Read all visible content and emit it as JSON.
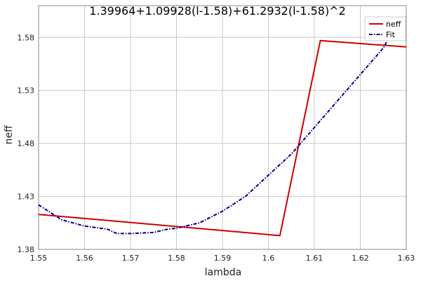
{
  "chart_data": {
    "type": "line",
    "title": "1.39964+1.09928(l-1.58)+61.2932(l-1.58)^2",
    "xlabel": "lambda",
    "ylabel": "neff",
    "xlim": [
      1.55,
      1.63
    ],
    "ylim": [
      1.38,
      1.61
    ],
    "x_ticks": [
      1.55,
      1.56,
      1.57,
      1.58,
      1.59,
      1.6,
      1.61,
      1.62,
      1.63
    ],
    "x_tick_labels": [
      "1.55",
      "1.56",
      "1.57",
      "1.58",
      "1.59",
      "1.6",
      "1.61",
      "1.62",
      "1.63"
    ],
    "y_ticks": [
      1.38,
      1.43,
      1.48,
      1.53,
      1.58
    ],
    "y_tick_labels": [
      "1.38",
      "1.43",
      "1.48",
      "1.53",
      "1.58"
    ],
    "grid": true,
    "legend_position": "top-right",
    "series": [
      {
        "name": "neff",
        "color": "#cc0000",
        "style": "solid",
        "x": [
          1.55,
          1.6025,
          1.6113,
          1.63
        ],
        "y": [
          1.413,
          1.393,
          1.577,
          1.571
        ]
      },
      {
        "name": "Fit",
        "color": "#00008b",
        "style": "dashdot",
        "x": [
          1.55,
          1.555,
          1.56,
          1.565,
          1.567,
          1.57,
          1.575,
          1.578,
          1.58,
          1.585,
          1.59,
          1.595,
          1.6,
          1.605,
          1.61,
          1.615,
          1.62,
          1.625,
          1.6275
        ],
        "y": [
          1.422,
          1.408,
          1.402,
          1.399,
          1.395,
          1.395,
          1.396,
          1.399,
          1.4,
          1.405,
          1.416,
          1.43,
          1.45,
          1.47,
          1.495,
          1.52,
          1.545,
          1.57,
          1.59
        ]
      }
    ]
  }
}
